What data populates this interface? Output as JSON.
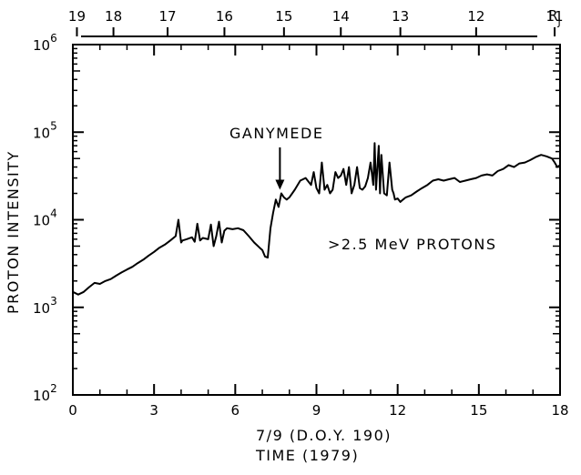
{
  "chart_data": {
    "type": "line",
    "xlabel_line1": "7/9 (D.O.Y. 190)",
    "xlabel_line2": "TIME (1979)",
    "ylabel": "PROTON INTENSITY",
    "xlim": [
      0,
      18
    ],
    "ylim": [
      100,
      1000000
    ],
    "y_scale": "log",
    "x_ticks": [
      "0",
      "3",
      "6",
      "9",
      "12",
      "15",
      "18"
    ],
    "y_ticks": [
      {
        "base": "10",
        "exp": "2",
        "value": 100
      },
      {
        "base": "10",
        "exp": "3",
        "value": 1000
      },
      {
        "base": "10",
        "exp": "4",
        "value": 10000
      },
      {
        "base": "10",
        "exp": "5",
        "value": 100000
      },
      {
        "base": "10",
        "exp": "6",
        "value": 1000000
      }
    ],
    "top_axis": {
      "label": "R",
      "label_sub": "J",
      "ticks": [
        {
          "label": "19",
          "hour": 0.15
        },
        {
          "label": "18",
          "hour": 1.5
        },
        {
          "label": "17",
          "hour": 3.5
        },
        {
          "label": "16",
          "hour": 5.6
        },
        {
          "label": "15",
          "hour": 7.8
        },
        {
          "label": "14",
          "hour": 9.9
        },
        {
          "label": "13",
          "hour": 12.1
        },
        {
          "label": "12",
          "hour": 14.9
        },
        {
          "label": "11",
          "hour": 17.8
        }
      ]
    },
    "annotations": [
      {
        "text": "GANYMEDE",
        "arrow_hour": 7.65,
        "arrow_value": 22000
      },
      {
        "text": ">2.5 MeV PROTONS"
      }
    ],
    "series": [
      {
        "x": [
          0.0,
          0.2,
          0.4,
          0.6,
          0.8,
          1.0,
          1.2,
          1.4,
          1.6,
          1.8,
          2.0,
          2.2,
          2.4,
          2.6,
          2.8,
          3.0,
          3.2,
          3.4,
          3.6,
          3.8,
          3.9,
          4.0,
          4.05,
          4.2,
          4.4,
          4.5,
          4.6,
          4.7,
          4.8,
          5.0,
          5.1,
          5.2,
          5.3,
          5.4,
          5.5,
          5.6,
          5.7,
          5.9,
          6.1,
          6.3,
          6.5,
          6.7,
          6.9,
          7.0,
          7.1,
          7.2,
          7.3,
          7.4,
          7.5,
          7.6,
          7.7,
          7.8,
          7.9,
          8.0,
          8.2,
          8.4,
          8.6,
          8.8,
          8.9,
          9.0,
          9.1,
          9.2,
          9.3,
          9.4,
          9.5,
          9.6,
          9.7,
          9.8,
          9.9,
          10.0,
          10.1,
          10.2,
          10.3,
          10.4,
          10.5,
          10.6,
          10.7,
          10.8,
          10.9,
          11.0,
          11.1,
          11.15,
          11.2,
          11.3,
          11.35,
          11.4,
          11.5,
          11.6,
          11.7,
          11.8,
          11.85,
          11.9,
          12.0,
          12.1,
          12.2,
          12.3,
          12.5,
          12.7,
          12.9,
          13.1,
          13.3,
          13.5,
          13.7,
          13.9,
          14.1,
          14.3,
          14.5,
          14.7,
          14.9,
          15.1,
          15.3,
          15.5,
          15.7,
          15.9,
          16.1,
          16.3,
          16.5,
          16.7,
          16.9,
          17.1,
          17.3,
          17.5,
          17.7,
          17.8,
          17.9,
          18.0
        ],
        "values": [
          1500,
          1400,
          1500,
          1700,
          1900,
          1850,
          2000,
          2100,
          2300,
          2500,
          2700,
          2900,
          3200,
          3500,
          3900,
          4300,
          4800,
          5200,
          5800,
          6500,
          10000,
          5500,
          5800,
          6000,
          6300,
          5600,
          9000,
          5800,
          6200,
          6000,
          8800,
          5000,
          6500,
          9500,
          5500,
          7500,
          8000,
          7800,
          8000,
          7600,
          6500,
          5500,
          4800,
          4500,
          3800,
          3700,
          8000,
          12000,
          17000,
          14000,
          20000,
          18000,
          17000,
          18000,
          22000,
          28000,
          30000,
          25000,
          35000,
          23000,
          20000,
          45000,
          22000,
          25000,
          20000,
          22000,
          35000,
          30000,
          32000,
          38000,
          25000,
          40000,
          20000,
          25000,
          40000,
          23000,
          22000,
          24000,
          30000,
          45000,
          25000,
          75000,
          22000,
          70000,
          20000,
          55000,
          20000,
          19000,
          45000,
          22000,
          20000,
          17000,
          17500,
          16000,
          17000,
          18000,
          19000,
          21000,
          23000,
          25000,
          28000,
          29000,
          28000,
          29000,
          30000,
          27000,
          28000,
          29000,
          30000,
          32000,
          33000,
          32000,
          36000,
          38000,
          42000,
          40000,
          44000,
          45000,
          48000,
          52000,
          55000,
          53000,
          50000,
          45000,
          40000,
          42000
        ]
      }
    ]
  }
}
